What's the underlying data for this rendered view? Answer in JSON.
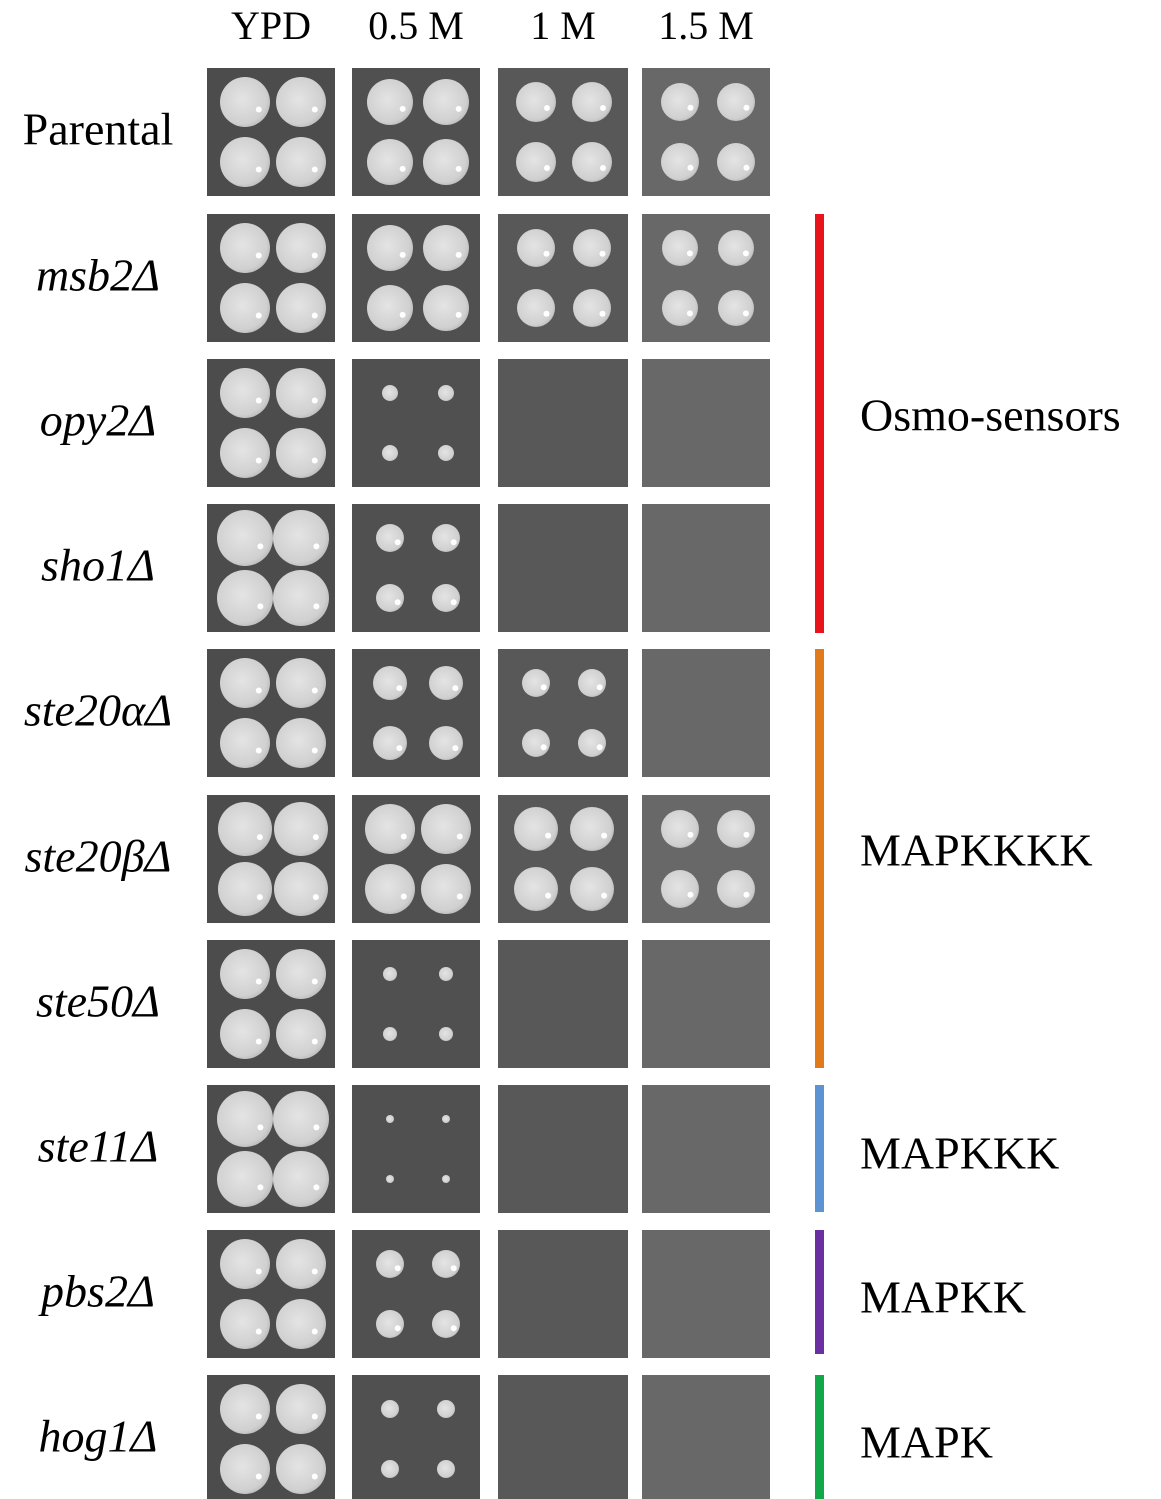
{
  "columns": [
    "YPD",
    "0.5 M",
    "1 M",
    "1.5 M"
  ],
  "rows": [
    {
      "label": "Parental"
    },
    {
      "label": "msb2Δ"
    },
    {
      "label": "opy2Δ"
    },
    {
      "label": "sho1Δ"
    },
    {
      "label": "ste20αΔ"
    },
    {
      "label": "ste20βΔ"
    },
    {
      "label": "ste50Δ"
    },
    {
      "label": "ste11Δ"
    },
    {
      "label": "pbs2Δ"
    },
    {
      "label": "hog1Δ"
    }
  ],
  "groups": [
    {
      "label": "Osmo-sensors",
      "color": "#e8141b"
    },
    {
      "label": "MAPKKKK",
      "color": "#e07a1a"
    },
    {
      "label": "MAPKKK",
      "color": "#5b93d3"
    },
    {
      "label": "MAPKK",
      "color": "#6a2fa0"
    },
    {
      "label": "MAPK",
      "color": "#12a84a"
    }
  ]
}
